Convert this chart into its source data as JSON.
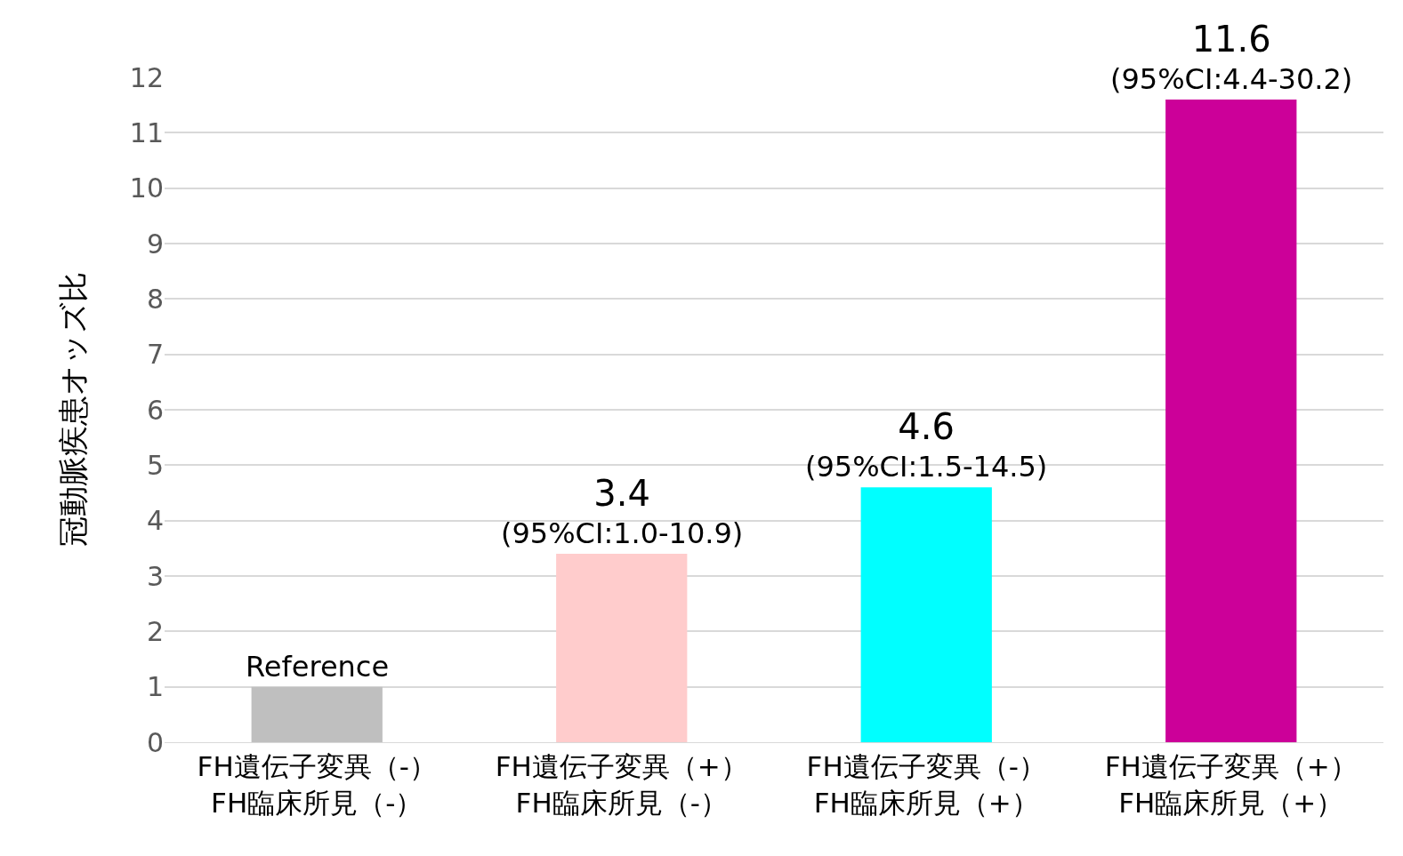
{
  "chart_data": {
    "type": "bar",
    "ylabel": "冠動脈疾患オッズ比",
    "categories": [
      "FH遺伝子変異（-）\nFH臨床所見（-）",
      "FH遺伝子変異（+）\nFH臨床所見（-）",
      "FH遺伝子変異（-）\nFH臨床所見（+）",
      "FH遺伝子変異（+）\nFH臨床所見（+）"
    ],
    "values": [
      1,
      3.4,
      4.6,
      11.6
    ],
    "colors": [
      "#bfbfbf",
      "#ffcccc",
      "#00ffff",
      "#cc0099"
    ],
    "value_labels": [
      "Reference",
      "3.4\n(95%CI:1.0-10.9)",
      "4.6\n(95%CI:1.5-14.5)",
      "11.6\n(95%CI:4.4-30.2)"
    ],
    "ylim": [
      0,
      12
    ],
    "yticks": [
      0,
      1,
      2,
      3,
      4,
      5,
      6,
      7,
      8,
      9,
      10,
      11,
      12
    ],
    "grid": "y"
  }
}
